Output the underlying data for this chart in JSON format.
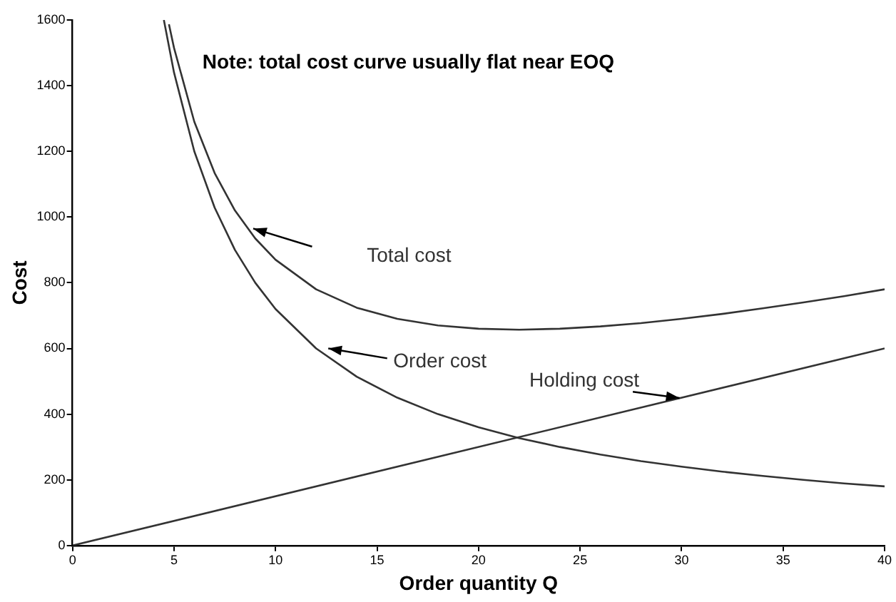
{
  "chart_data": {
    "type": "line",
    "xlabel": "Order quantity Q",
    "ylabel": "Cost",
    "annotations": [
      "Note: total cost curve usually flat near EOQ"
    ],
    "xlim": [
      0,
      40
    ],
    "xticks": [
      0,
      5,
      10,
      15,
      20,
      25,
      30,
      35,
      40
    ],
    "ylim": [
      0,
      1600
    ],
    "yticks": [
      0,
      200,
      400,
      600,
      800,
      1000,
      1200,
      1400,
      1600
    ],
    "grid": false,
    "legend": false,
    "marker": "none",
    "line_style": "solid",
    "series": [
      {
        "name": "Total cost",
        "color": "#333333",
        "x": [
          4.75,
          5,
          6,
          7,
          8,
          9,
          10,
          12,
          14,
          16,
          18,
          20,
          22,
          24,
          26,
          28,
          30,
          32,
          34,
          36,
          38,
          40
        ],
        "values": [
          1587,
          1515,
          1290,
          1134,
          1020,
          935,
          870,
          780,
          724,
          690,
          670,
          660,
          657,
          660,
          667,
          677,
          690,
          705,
          722,
          740,
          759,
          780
        ]
      },
      {
        "name": "Order cost",
        "color": "#333333",
        "x": [
          4.5,
          5,
          6,
          7,
          8,
          9,
          10,
          12,
          14,
          16,
          18,
          20,
          22,
          24,
          26,
          28,
          30,
          32,
          34,
          36,
          38,
          40
        ],
        "values": [
          1600,
          1440,
          1200,
          1029,
          900,
          800,
          720,
          600,
          514,
          450,
          400,
          360,
          327,
          300,
          277,
          257,
          240,
          225,
          212,
          200,
          189,
          180
        ]
      },
      {
        "name": "Holding cost",
        "color": "#333333",
        "x": [
          0,
          40
        ],
        "values": [
          0,
          600
        ]
      }
    ]
  }
}
